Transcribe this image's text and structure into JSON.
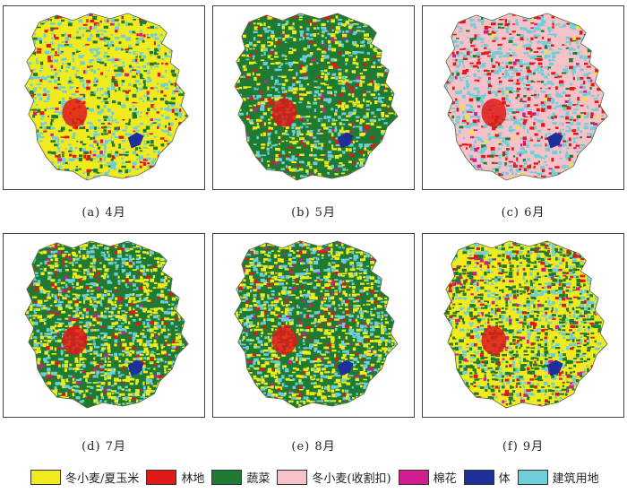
{
  "colors": {
    "yellow": "#f0ea1f",
    "red": "#e01818",
    "darkgreen": "#1f7a33",
    "pink": "#f4c2c8",
    "magenta": "#d31c8f",
    "blue": "#1f2f9a",
    "cyan": "#6fcfd8"
  },
  "legend": [
    {
      "label": "冬小麦/夏玉米",
      "color": "#f0ea1f"
    },
    {
      "label": "林地",
      "color": "#e01818"
    },
    {
      "label": "蔬菜",
      "color": "#1f7a33"
    },
    {
      "label": "冬小麦(收割扣)",
      "color": "#f4c2c8"
    },
    {
      "label": "棉花",
      "color": "#d31c8f"
    },
    {
      "label": "体",
      "color": "#1f2f9a"
    },
    {
      "label": "建筑用地",
      "color": "#6fcfd8"
    }
  ],
  "panels": [
    {
      "caption": "(a) 4月",
      "mix": {
        "yellow": 0.55,
        "cyan": 0.25,
        "darkgreen": 0.12,
        "red": 0.06,
        "pink": 0.0,
        "magenta": 0.02
      }
    },
    {
      "caption": "(b) 5月",
      "mix": {
        "darkgreen": 0.55,
        "yellow": 0.22,
        "cyan": 0.16,
        "red": 0.05,
        "pink": 0.0,
        "magenta": 0.02
      }
    },
    {
      "caption": "(c) 6月",
      "mix": {
        "pink": 0.5,
        "cyan": 0.28,
        "red": 0.14,
        "darkgreen": 0.04,
        "yellow": 0.02,
        "magenta": 0.02
      }
    },
    {
      "caption": "(d) 7月",
      "mix": {
        "darkgreen": 0.38,
        "yellow": 0.32,
        "cyan": 0.22,
        "red": 0.05,
        "pink": 0.0,
        "magenta": 0.03
      }
    },
    {
      "caption": "(e) 8月",
      "mix": {
        "darkgreen": 0.36,
        "yellow": 0.34,
        "cyan": 0.22,
        "red": 0.05,
        "pink": 0.0,
        "magenta": 0.03
      }
    },
    {
      "caption": "(f) 9月",
      "mix": {
        "yellow": 0.36,
        "darkgreen": 0.34,
        "cyan": 0.2,
        "red": 0.07,
        "pink": 0.0,
        "magenta": 0.03
      }
    }
  ]
}
